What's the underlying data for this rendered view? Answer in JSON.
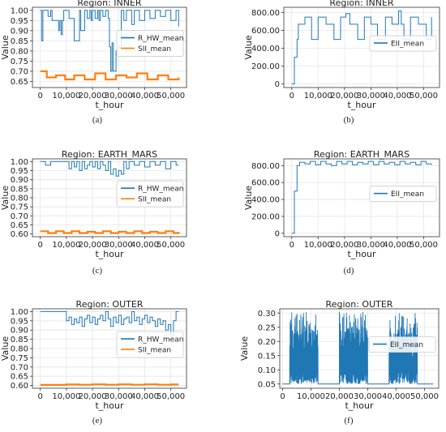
{
  "chart_data": [
    {
      "panel": "(a)",
      "type": "line",
      "title": "Region: INNER",
      "xlabel": "t_hour",
      "ylabel": "Value",
      "xlim": [
        -3000,
        56000
      ],
      "ylim": [
        0.62,
        1.015
      ],
      "xticks": [
        0,
        10000,
        20000,
        30000,
        40000,
        50000
      ],
      "xtick_labels": [
        "0",
        "10,000",
        "20,000",
        "30,000",
        "40,000",
        "50,000"
      ],
      "yticks": [
        0.65,
        0.7,
        0.75,
        0.8,
        0.85,
        0.9,
        0.95,
        1.0
      ],
      "ytick_labels": [
        "0.65",
        "0.70",
        "0.75",
        "0.80",
        "0.85",
        "0.90",
        "0.95",
        "1.00"
      ],
      "grid": true,
      "legend_position": "center-right",
      "series": [
        {
          "name": "R_HW_mean",
          "color": "#1f77b4",
          "x": [
            0,
            500,
            1000,
            2000,
            3000,
            4000,
            4500,
            6000,
            7000,
            7500,
            8000,
            8500,
            9000,
            10500,
            11000,
            12000,
            13000,
            14000,
            15000,
            15500,
            16500,
            17000,
            18000,
            19000,
            19500,
            20000,
            21000,
            22000,
            22500,
            23000,
            24000,
            25000,
            26000,
            26500,
            27000,
            27500,
            28000,
            29000,
            30000,
            31000,
            32000,
            33000,
            34000,
            35000,
            36000,
            38000,
            40000,
            42000,
            44000,
            46000,
            48000,
            50000,
            52000,
            53000
          ],
          "y": [
            1.0,
            0.85,
            1.0,
            1.0,
            0.97,
            1.0,
            0.95,
            0.95,
            0.9,
            0.95,
            0.88,
            0.95,
            1.0,
            1.0,
            0.96,
            0.96,
            0.85,
            0.85,
            1.0,
            0.9,
            0.9,
            1.0,
            0.96,
            1.0,
            0.95,
            1.0,
            0.96,
            1.0,
            0.95,
            1.0,
            0.97,
            1.0,
            0.96,
            0.82,
            0.7,
            0.84,
            0.7,
            0.8,
            0.82,
            1.0,
            0.95,
            1.0,
            1.0,
            0.93,
            1.0,
            0.95,
            1.0,
            0.96,
            1.0,
            0.97,
            1.0,
            0.95,
            1.0,
            0.92
          ]
        },
        {
          "name": "SII_mean",
          "color": "#ff7f0e",
          "x": [
            0,
            2000,
            2500,
            5000,
            6000,
            9000,
            9500,
            12000,
            13000,
            16000,
            17000,
            20000,
            21000,
            24000,
            25000,
            28000,
            29000,
            32000,
            33000,
            36000,
            37000,
            40000,
            41000,
            44000,
            45000,
            48000,
            49000,
            52000,
            53000
          ],
          "y": [
            0.7,
            0.7,
            0.67,
            0.67,
            0.68,
            0.68,
            0.66,
            0.66,
            0.68,
            0.68,
            0.66,
            0.66,
            0.69,
            0.69,
            0.66,
            0.66,
            0.68,
            0.68,
            0.67,
            0.67,
            0.69,
            0.69,
            0.66,
            0.66,
            0.68,
            0.68,
            0.66,
            0.66,
            0.67
          ]
        }
      ]
    },
    {
      "panel": "(b)",
      "type": "line",
      "title": "Region: INNER",
      "xlabel": "t_hour",
      "ylabel": "Value",
      "xlim": [
        -3000,
        56000
      ],
      "ylim": [
        -40,
        860
      ],
      "xticks": [
        0,
        10000,
        20000,
        30000,
        40000,
        50000
      ],
      "xtick_labels": [
        "0",
        "10,000",
        "20,000",
        "30,000",
        "40,000",
        "50,000"
      ],
      "yticks": [
        0,
        200,
        400,
        600,
        800
      ],
      "ytick_labels": [
        "0",
        "200.00",
        "400.00",
        "600.00",
        "800.00"
      ],
      "grid": true,
      "legend_position": "center-right",
      "series": [
        {
          "name": "EII_mean",
          "color": "#1f77b4",
          "x": [
            0,
            1000,
            2000,
            2500,
            4000,
            5000,
            6500,
            7500,
            9000,
            10000,
            11500,
            13000,
            14000,
            16000,
            17000,
            18500,
            19500,
            20500,
            22000,
            23000,
            25000,
            26000,
            27500,
            28500,
            30000,
            31500,
            32500,
            34000,
            35500,
            36500,
            38000,
            39500,
            40500,
            41500,
            42500,
            44000,
            45000,
            46500,
            48000,
            49500,
            51000,
            52500,
            53000
          ],
          "y": [
            0,
            300,
            500,
            670,
            670,
            750,
            750,
            500,
            500,
            750,
            750,
            670,
            670,
            500,
            500,
            750,
            750,
            790,
            670,
            670,
            500,
            500,
            750,
            750,
            670,
            670,
            500,
            500,
            750,
            750,
            670,
            670,
            820,
            670,
            500,
            500,
            750,
            750,
            670,
            670,
            500,
            500,
            750
          ]
        }
      ]
    },
    {
      "panel": "(c)",
      "type": "line",
      "title": "Region: EARTH_MARS",
      "xlabel": "t_hour",
      "ylabel": "Value",
      "xlim": [
        -3000,
        56000
      ],
      "ylim": [
        0.585,
        1.015
      ],
      "xticks": [
        0,
        10000,
        20000,
        30000,
        40000,
        50000
      ],
      "xtick_labels": [
        "0",
        "10,000",
        "20,000",
        "30,000",
        "40,000",
        "50,000"
      ],
      "yticks": [
        0.6,
        0.65,
        0.7,
        0.75,
        0.8,
        0.85,
        0.9,
        0.95,
        1.0
      ],
      "ytick_labels": [
        "0.60",
        "0.65",
        "0.70",
        "0.75",
        "0.80",
        "0.85",
        "0.90",
        "0.95",
        "1.00"
      ],
      "grid": true,
      "legend_position": "center-right",
      "series": [
        {
          "name": "R_HW_mean",
          "color": "#1f77b4",
          "x": [
            0,
            2000,
            4000,
            6000,
            8000,
            10000,
            11000,
            12000,
            13000,
            14000,
            15000,
            16000,
            17000,
            18000,
            19000,
            20000,
            21000,
            22000,
            23000,
            24000,
            25000,
            26000,
            27000,
            28000,
            29000,
            30000,
            31000,
            32000,
            33000,
            34000,
            36000,
            38000,
            40000,
            42000,
            44000,
            46000,
            48000,
            50000,
            52000,
            53000
          ],
          "y": [
            1.0,
            0.98,
            1.0,
            1.0,
            1.0,
            1.0,
            0.96,
            1.0,
            0.97,
            1.0,
            0.95,
            1.0,
            0.96,
            0.98,
            1.0,
            0.97,
            1.0,
            0.96,
            1.0,
            0.98,
            0.95,
            1.0,
            0.93,
            0.96,
            0.92,
            0.95,
            0.93,
            1.0,
            0.96,
            1.0,
            0.98,
            1.0,
            0.97,
            1.0,
            0.98,
            1.0,
            0.96,
            1.0,
            0.98,
            0.98
          ]
        },
        {
          "name": "SII_mean",
          "color": "#ff7f0e",
          "x": [
            0,
            3000,
            6000,
            9000,
            12000,
            15000,
            18000,
            21000,
            24000,
            27000,
            30000,
            33000,
            36000,
            39000,
            42000,
            45000,
            48000,
            51000,
            53000
          ],
          "y": [
            0.615,
            0.605,
            0.615,
            0.605,
            0.615,
            0.605,
            0.612,
            0.605,
            0.615,
            0.605,
            0.612,
            0.605,
            0.615,
            0.605,
            0.612,
            0.605,
            0.615,
            0.605,
            0.612
          ]
        }
      ]
    },
    {
      "panel": "(d)",
      "type": "line",
      "title": "Region: EARTH_MARS",
      "xlabel": "t_hour",
      "ylabel": "Value",
      "xlim": [
        -3000,
        56000
      ],
      "ylim": [
        -40,
        880
      ],
      "xticks": [
        0,
        10000,
        20000,
        30000,
        40000,
        50000
      ],
      "xtick_labels": [
        "0",
        "10,000",
        "20,000",
        "30,000",
        "40,000",
        "50,000"
      ],
      "yticks": [
        0,
        200,
        400,
        600,
        800
      ],
      "ytick_labels": [
        "0",
        "200.00",
        "400.00",
        "600.00",
        "800.00"
      ],
      "grid": true,
      "legend_position": "center-right",
      "series": [
        {
          "name": "EII_mean",
          "color": "#1f77b4",
          "x": [
            0,
            1000,
            2000,
            3000,
            5000,
            7000,
            9000,
            11000,
            13000,
            15000,
            17000,
            19000,
            21000,
            23000,
            25000,
            27000,
            29000,
            31000,
            33000,
            35000,
            37000,
            39000,
            41000,
            43000,
            45000,
            47000,
            49000,
            51000,
            53000
          ],
          "y": [
            0,
            500,
            800,
            840,
            820,
            850,
            810,
            850,
            820,
            800,
            850,
            820,
            850,
            810,
            840,
            820,
            850,
            810,
            850,
            820,
            840,
            810,
            850,
            820,
            840,
            810,
            850,
            820,
            810
          ]
        }
      ]
    },
    {
      "panel": "(e)",
      "type": "line",
      "title": "Region: OUTER",
      "xlabel": "t_hour",
      "ylabel": "Value",
      "xlim": [
        -3000,
        56000
      ],
      "ylim": [
        0.585,
        1.015
      ],
      "xticks": [
        0,
        10000,
        20000,
        30000,
        40000,
        50000
      ],
      "xtick_labels": [
        "0",
        "10,000",
        "20,000",
        "30,000",
        "40,000",
        "50,000"
      ],
      "yticks": [
        0.6,
        0.65,
        0.7,
        0.75,
        0.8,
        0.85,
        0.9,
        0.95,
        1.0
      ],
      "ytick_labels": [
        "0.60",
        "0.65",
        "0.70",
        "0.75",
        "0.80",
        "0.85",
        "0.90",
        "0.95",
        "1.00"
      ],
      "grid": true,
      "legend_position": "center-right",
      "series": [
        {
          "name": "R_HW_mean",
          "color": "#1f77b4",
          "x": [
            0,
            5000,
            9000,
            10000,
            11000,
            12000,
            13000,
            14000,
            15000,
            16000,
            17000,
            18000,
            19000,
            20000,
            21000,
            22000,
            23000,
            24000,
            25000,
            26000,
            27000,
            28000,
            29000,
            30000,
            31000,
            32000,
            33000,
            34000,
            35000,
            36000,
            37000,
            38000,
            39000,
            40000,
            41000,
            42000,
            43000,
            44000,
            45000,
            46000,
            47000,
            48000,
            49000,
            50000,
            51000,
            52000,
            53000
          ],
          "y": [
            1.0,
            1.0,
            1.0,
            0.95,
            0.97,
            0.93,
            0.96,
            0.94,
            0.97,
            0.92,
            0.96,
            0.98,
            0.94,
            0.97,
            0.93,
            0.96,
            0.98,
            0.95,
            1.0,
            0.96,
            0.92,
            0.97,
            0.94,
            0.98,
            0.93,
            0.96,
            0.97,
            0.94,
            1.0,
            0.95,
            0.97,
            0.93,
            0.96,
            0.98,
            0.94,
            0.97,
            0.95,
            0.92,
            0.96,
            0.93,
            0.95,
            0.9,
            0.93,
            0.87,
            0.95,
            1.0,
            1.0
          ]
        },
        {
          "name": "SII_mean",
          "color": "#ff7f0e",
          "x": [
            0,
            5000,
            10000,
            15000,
            20000,
            25000,
            30000,
            35000,
            40000,
            45000,
            50000,
            53000
          ],
          "y": [
            0.603,
            0.603,
            0.605,
            0.604,
            0.606,
            0.604,
            0.606,
            0.604,
            0.606,
            0.604,
            0.605,
            0.605
          ]
        }
      ]
    },
    {
      "panel": "(f)",
      "type": "line",
      "title": "Region: OUTER",
      "xlabel": "t_hour",
      "ylabel": "Value",
      "xlim": [
        -1000,
        55000
      ],
      "ylim": [
        0.035,
        0.315
      ],
      "xticks": [
        0,
        10000,
        20000,
        30000,
        40000,
        50000
      ],
      "xtick_labels": [
        "0",
        "10,000",
        "20,000",
        "30,000",
        "40,000",
        "50,000"
      ],
      "yticks": [
        0.05,
        0.1,
        0.15,
        0.2,
        0.25,
        0.3
      ],
      "ytick_labels": [
        "0.05",
        "0.10",
        "0.15",
        "0.20",
        "0.25",
        "0.30"
      ],
      "grid": true,
      "legend_position": "center-right",
      "active_windows": [
        [
          2500,
          12500
        ],
        [
          20000,
          30000
        ],
        [
          37500,
          47500
        ]
      ],
      "baseline": 0.05,
      "peak_max": 0.305,
      "series": [
        {
          "name": "EII_mean",
          "color": "#1f77b4"
        }
      ]
    }
  ],
  "captions": [
    "(a)",
    "(b)",
    "(c)",
    "(d)",
    "(e)",
    "(f)"
  ]
}
